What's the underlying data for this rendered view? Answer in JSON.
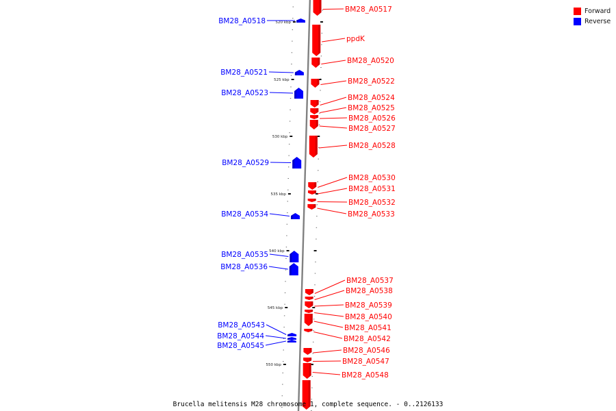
{
  "caption": "Brucella melitensis M28 chromosome 1, complete sequence. - 0..2126133",
  "legend": [
    {
      "label": "Forward",
      "color": "#ff0000"
    },
    {
      "label": "Reverse",
      "color": "#0000ff"
    }
  ],
  "colors": {
    "forward": "#ff0000",
    "reverse": "#0000ff",
    "backbone": "#808080"
  },
  "scale_ticks": [
    "520 kbp",
    "525 kbp",
    "530 kbp",
    "535 kbp",
    "540 kbp",
    "545 kbp",
    "550 kbp"
  ],
  "forward_genes": [
    "BM28_A0517",
    "ppdK",
    "BM28_A0520",
    "BM28_A0522",
    "BM28_A0524",
    "BM28_A0525",
    "BM28_A0526",
    "BM28_A0527",
    "BM28_A0528",
    "BM28_A0530",
    "BM28_A0531",
    "BM28_A0532",
    "BM28_A0533",
    "BM28_A0537",
    "BM28_A0538",
    "BM28_A0539",
    "BM28_A0540",
    "BM28_A0541",
    "BM28_A0542",
    "BM28_A0546",
    "BM28_A0547",
    "BM28_A0548"
  ],
  "reverse_genes": [
    "BM28_A0518",
    "BM28_A0521",
    "BM28_A0523",
    "BM28_A0529",
    "BM28_A0534",
    "BM28_A0535",
    "BM28_A0536",
    "BM28_A0543",
    "BM28_A0544",
    "BM28_A0545"
  ]
}
